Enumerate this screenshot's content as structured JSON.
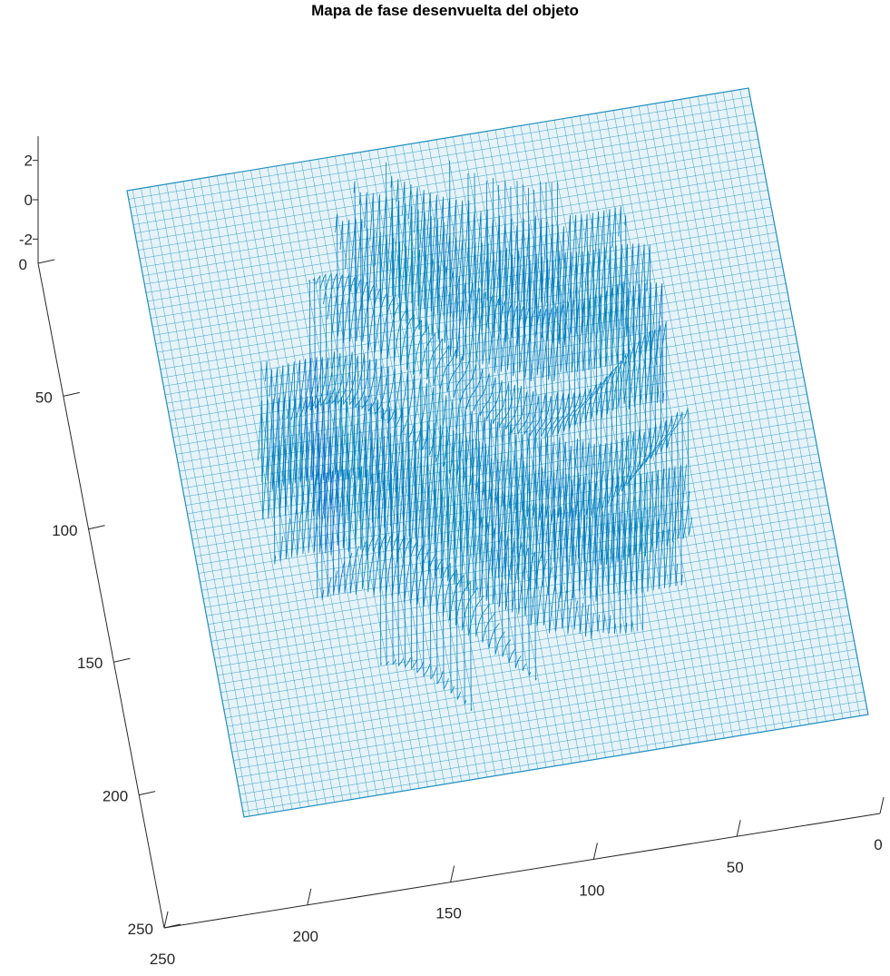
{
  "chart_data": {
    "type": "surface",
    "title": "Mapa de fase desenvuelta del objeto",
    "xlabel": "",
    "ylabel": "",
    "zlabel": "",
    "x_ticks": [
      0,
      50,
      100,
      150,
      200,
      250
    ],
    "y_ticks": [
      0,
      50,
      100,
      150,
      200,
      250
    ],
    "z_ticks": [
      2,
      0,
      -2
    ],
    "x_range": [
      0,
      250
    ],
    "y_range": [
      0,
      250
    ],
    "z_range": [
      -3,
      3
    ],
    "grid_size": 221,
    "colormap": "winter",
    "flat_level_color": "#1f8fc0",
    "colormap_low": "#0000ff",
    "colormap_high": "#00ff80",
    "background": "#ffffff"
  }
}
